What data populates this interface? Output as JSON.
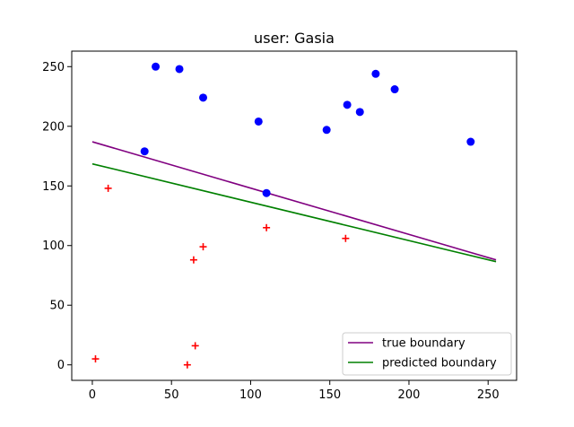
{
  "chart_data": {
    "type": "scatter",
    "title": "user: Gasia",
    "xlabel": "",
    "ylabel": "",
    "xlim": [
      -13,
      268
    ],
    "ylim": [
      -13,
      263
    ],
    "xticks": [
      0,
      50,
      100,
      150,
      200,
      250
    ],
    "yticks": [
      0,
      50,
      100,
      150,
      200,
      250
    ],
    "grid": false,
    "legend_position": "bottom-right",
    "scatter_series": [
      {
        "marker": "circle",
        "color": "#0000ff",
        "points": [
          [
            33,
            179
          ],
          [
            40,
            250
          ],
          [
            55,
            248
          ],
          [
            70,
            224
          ],
          [
            105,
            204
          ],
          [
            110,
            144
          ],
          [
            148,
            197
          ],
          [
            161,
            218
          ],
          [
            169,
            212
          ],
          [
            179,
            244
          ],
          [
            191,
            231
          ],
          [
            239,
            187
          ]
        ]
      },
      {
        "marker": "plus",
        "color": "#ff0000",
        "points": [
          [
            2,
            5
          ],
          [
            10,
            148
          ],
          [
            60,
            0
          ],
          [
            64,
            88
          ],
          [
            65,
            16
          ],
          [
            70,
            99
          ],
          [
            110,
            115
          ],
          [
            160,
            106
          ]
        ]
      }
    ],
    "line_series": [
      {
        "name": "true boundary",
        "color": "#800080",
        "points": [
          [
            0,
            187
          ],
          [
            255,
            88
          ]
        ]
      },
      {
        "name": "predicted boundary",
        "color": "#008000",
        "points": [
          [
            0,
            168.5
          ],
          [
            255,
            86.5
          ]
        ]
      }
    ]
  }
}
